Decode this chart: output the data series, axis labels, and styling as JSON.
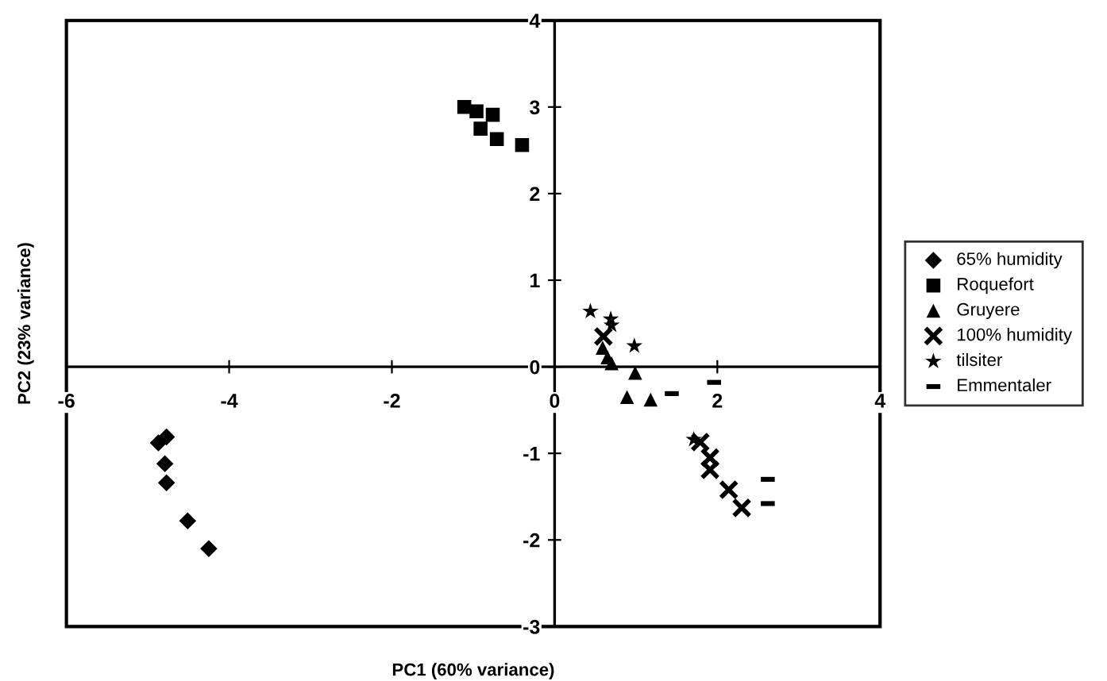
{
  "chart_data": {
    "type": "scatter",
    "xlabel": "PC1 (60% variance)",
    "ylabel": "PC2 (23% variance)",
    "xlim": [
      -6,
      4
    ],
    "ylim": [
      -3,
      4
    ],
    "xticks": [
      -6,
      -4,
      -2,
      0,
      2,
      4
    ],
    "yticks": [
      -3,
      -2,
      -1,
      0,
      1,
      2,
      3,
      4
    ],
    "grid": false,
    "legend": "right",
    "series": [
      {
        "name": "65% humidity",
        "color": "#000000",
        "marker": "diamond",
        "x": [
          -4.87,
          -4.77,
          -4.79,
          -4.77,
          -4.51,
          -4.25
        ],
        "values": [
          -0.88,
          -0.81,
          -1.12,
          -1.34,
          -1.78,
          -2.1
        ]
      },
      {
        "name": "Roquefort",
        "color": "#000000",
        "marker": "square",
        "x": [
          -1.11,
          -0.96,
          -0.76,
          -0.91,
          -0.71,
          -0.4
        ],
        "values": [
          3.0,
          2.95,
          2.91,
          2.75,
          2.63,
          2.56
        ]
      },
      {
        "name": "Gruyere",
        "color": "#000000",
        "marker": "triangle",
        "x": [
          0.59,
          0.65,
          0.7,
          0.99,
          0.89,
          1.18
        ],
        "values": [
          0.22,
          0.11,
          0.04,
          -0.07,
          -0.35,
          -0.38
        ]
      },
      {
        "name": "100% humidity",
        "color": "#000000",
        "marker": "cross",
        "x": [
          0.6,
          1.79,
          1.91,
          1.91,
          2.14,
          2.3
        ],
        "values": [
          0.35,
          -0.87,
          -1.05,
          -1.19,
          -1.42,
          -1.63
        ]
      },
      {
        "name": "tilsiter",
        "color": "#000000",
        "marker": "star",
        "x": [
          0.44,
          0.69,
          0.7,
          0.98,
          1.71
        ],
        "values": [
          0.64,
          0.55,
          0.48,
          0.24,
          -0.84
        ]
      },
      {
        "name": "Emmentaler",
        "color": "#000000",
        "x": [
          1.44,
          1.96,
          2.62,
          2.62
        ],
        "values": [
          -0.31,
          -0.18,
          -1.3,
          -1.58
        ]
      }
    ]
  }
}
